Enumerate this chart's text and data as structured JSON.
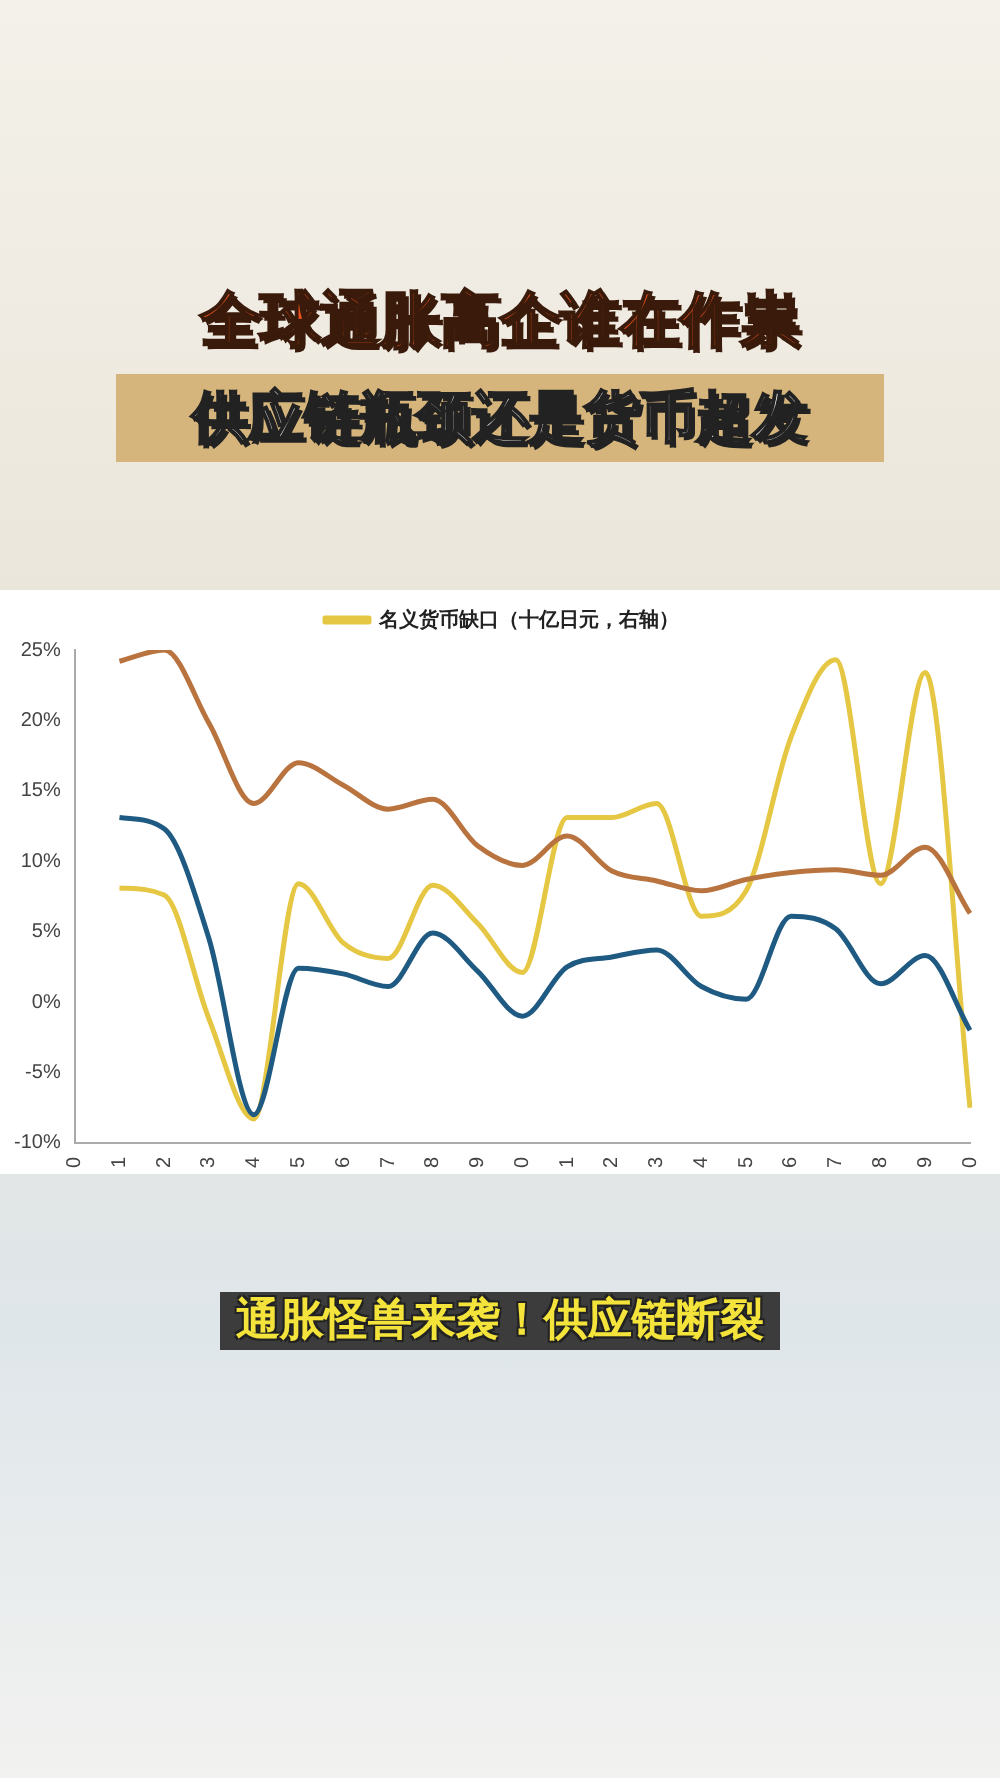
{
  "chart_data": {
    "type": "line",
    "title": "全球通胀高企谁在作祟",
    "subtitle": "供应链瓶颈还是货币超发",
    "annotations": [
      "通胀怪兽来袭！供应链断裂"
    ],
    "categories": [
      "0",
      "1",
      "2",
      "3",
      "4",
      "5",
      "6",
      "7",
      "8",
      "9",
      "0",
      "1",
      "2",
      "3",
      "4",
      "5",
      "6",
      "7",
      "8",
      "9",
      "0"
    ],
    "ylim": [
      -10,
      25
    ],
    "yticks": [
      {
        "value": -10,
        "label": "-10%"
      },
      {
        "value": -5,
        "label": "-5%"
      },
      {
        "value": 0,
        "label": "0%"
      },
      {
        "value": 5,
        "label": "5%"
      },
      {
        "value": 10,
        "label": "10%"
      },
      {
        "value": 15,
        "label": "15%"
      },
      {
        "value": 20,
        "label": "20%"
      },
      {
        "value": 25,
        "label": "25%"
      }
    ],
    "grid": false,
    "legend": "top",
    "marker": "none",
    "line_style": "solid",
    "series": [
      {
        "color": "#b8733f",
        "values": [
          null,
          24.2,
          25.0,
          19.8,
          14.1,
          17.0,
          15.4,
          13.7,
          14.4,
          11.1,
          9.7,
          11.8,
          9.3,
          8.6,
          7.9,
          8.7,
          9.2,
          9.4,
          9.0,
          11.0,
          6.3
        ]
      },
      {
        "color": "#1f5a82",
        "values": [
          null,
          13.1,
          12.3,
          4.5,
          -8.0,
          2.4,
          2.0,
          1.1,
          4.9,
          2.2,
          -1.0,
          2.5,
          3.2,
          3.7,
          1.1,
          0.2,
          6.1,
          5.2,
          1.3,
          3.3,
          -2.0
        ]
      },
      {
        "name": "名义货币缺口（十亿日元，右轴）",
        "color": "#e6c743",
        "values": [
          null,
          8.1,
          7.6,
          -1.2,
          -8.3,
          8.4,
          4.2,
          3.1,
          8.3,
          5.6,
          2.1,
          13.1,
          13.1,
          14.1,
          6.1,
          7.9,
          18.8,
          24.3,
          8.4,
          23.4,
          -7.5
        ]
      }
    ]
  }
}
